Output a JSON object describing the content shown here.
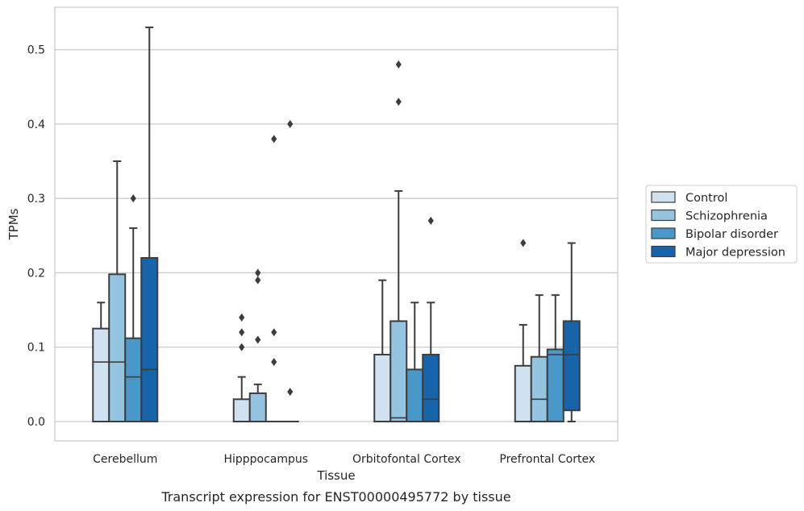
{
  "chart_data": {
    "type": "box",
    "title": "",
    "caption": "Transcript expression for ENST00000495772 by tissue",
    "xlabel": "Tissue",
    "ylabel": "TPMs",
    "ylim": [
      -0.026,
      0.557
    ],
    "yticks": [
      0.0,
      0.1,
      0.2,
      0.3,
      0.4,
      0.5
    ],
    "ytick_labels": [
      "0.0",
      "0.1",
      "0.2",
      "0.3",
      "0.4",
      "0.5"
    ],
    "grid": "horizontal",
    "legend_position": "right",
    "categories": [
      "Cerebellum",
      "Hipppocampus",
      "Orbitofontal Cortex",
      "Prefrontal Cortex"
    ],
    "series": [
      {
        "name": "Control",
        "color": "#d0e1f2",
        "boxes": [
          {
            "low": 0.0,
            "q1": 0.0,
            "median": 0.08,
            "q3": 0.125,
            "high": 0.16,
            "outliers": []
          },
          {
            "low": 0.0,
            "q1": 0.0,
            "median": 0.0,
            "q3": 0.03,
            "high": 0.06,
            "outliers": [
              0.1,
              0.12,
              0.14
            ]
          },
          {
            "low": 0.0,
            "q1": 0.0,
            "median": 0.0,
            "q3": 0.09,
            "high": 0.19,
            "outliers": []
          },
          {
            "low": 0.0,
            "q1": 0.0,
            "median": 0.0,
            "q3": 0.075,
            "high": 0.13,
            "outliers": [
              0.24
            ]
          }
        ]
      },
      {
        "name": "Schizophrenia",
        "color": "#94c4df",
        "boxes": [
          {
            "low": 0.0,
            "q1": 0.0,
            "median": 0.08,
            "q3": 0.198,
            "high": 0.35,
            "outliers": []
          },
          {
            "low": 0.0,
            "q1": 0.0,
            "median": 0.0,
            "q3": 0.038,
            "high": 0.05,
            "outliers": [
              0.11,
              0.19,
              0.2
            ]
          },
          {
            "low": 0.0,
            "q1": 0.0,
            "median": 0.005,
            "q3": 0.135,
            "high": 0.31,
            "outliers": [
              0.43,
              0.48
            ]
          },
          {
            "low": 0.0,
            "q1": 0.0,
            "median": 0.03,
            "q3": 0.087,
            "high": 0.17,
            "outliers": []
          }
        ]
      },
      {
        "name": "Bipolar disorder",
        "color": "#4a98c9",
        "boxes": [
          {
            "low": 0.0,
            "q1": 0.0,
            "median": 0.06,
            "q3": 0.112,
            "high": 0.26,
            "outliers": [
              0.3
            ]
          },
          {
            "low": 0.0,
            "q1": 0.0,
            "median": 0.0,
            "q3": 0.0,
            "high": 0.0,
            "outliers": [
              0.08,
              0.12,
              0.38
            ]
          },
          {
            "low": 0.0,
            "q1": 0.0,
            "median": 0.0,
            "q3": 0.07,
            "high": 0.16,
            "outliers": []
          },
          {
            "low": 0.0,
            "q1": 0.0,
            "median": 0.09,
            "q3": 0.097,
            "high": 0.17,
            "outliers": []
          }
        ]
      },
      {
        "name": "Major depression",
        "color": "#1764ab",
        "boxes": [
          {
            "low": 0.0,
            "q1": 0.0,
            "median": 0.07,
            "q3": 0.22,
            "high": 0.53,
            "outliers": []
          },
          {
            "low": 0.0,
            "q1": 0.0,
            "median": 0.0,
            "q3": 0.0,
            "high": 0.0,
            "outliers": [
              0.04,
              0.4
            ]
          },
          {
            "low": 0.0,
            "q1": 0.0,
            "median": 0.03,
            "q3": 0.09,
            "high": 0.16,
            "outliers": [
              0.27
            ]
          },
          {
            "low": 0.0,
            "q1": 0.015,
            "median": 0.09,
            "q3": 0.135,
            "high": 0.24,
            "outliers": []
          }
        ]
      }
    ]
  }
}
